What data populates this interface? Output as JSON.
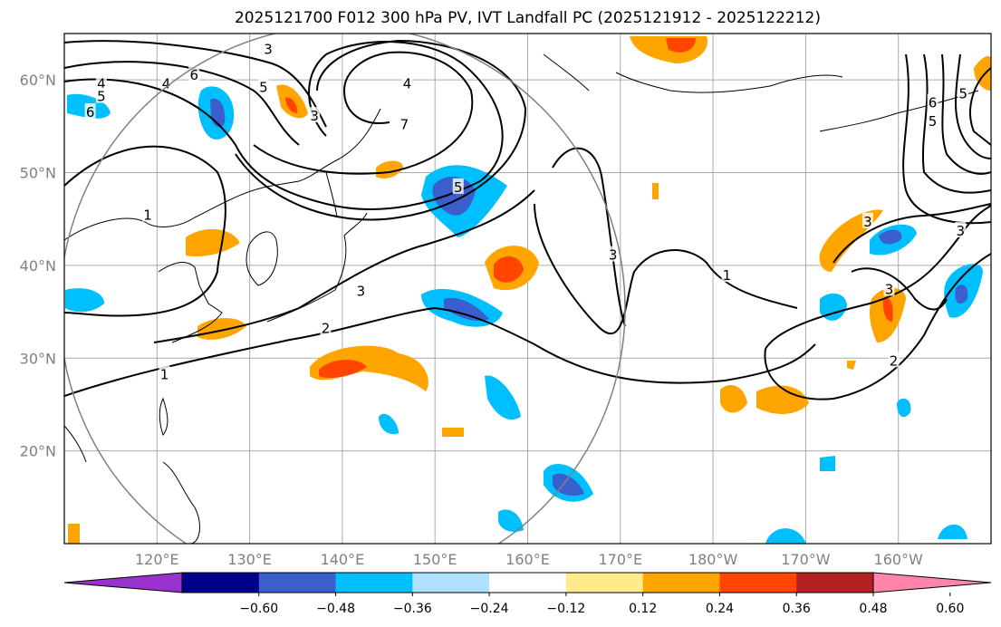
{
  "title": "2025121700 F012 300 hPa PV, IVT Landfall PC (2025121912 - 2025122212)",
  "map": {
    "lon_range": [
      110,
      210
    ],
    "lat_range": [
      10,
      65
    ],
    "lon_ticks": [
      {
        "lon": 120,
        "label": "120°E"
      },
      {
        "lon": 130,
        "label": "130°E"
      },
      {
        "lon": 140,
        "label": "140°E"
      },
      {
        "lon": 150,
        "label": "150°E"
      },
      {
        "lon": 160,
        "label": "160°E"
      },
      {
        "lon": 170,
        "label": "170°E"
      },
      {
        "lon": 180,
        "label": "180°W"
      },
      {
        "lon": 190,
        "label": "170°W"
      },
      {
        "lon": 200,
        "label": "160°W"
      }
    ],
    "lat_ticks": [
      {
        "lat": 60,
        "label": "60°N"
      },
      {
        "lat": 50,
        "label": "50°N"
      },
      {
        "lat": 40,
        "label": "40°N"
      },
      {
        "lat": 30,
        "label": "30°N"
      },
      {
        "lat": 20,
        "label": "20°N"
      }
    ],
    "contour_labels": [
      {
        "lon": 124.0,
        "lat": 60.6,
        "text": "6"
      },
      {
        "lon": 121.0,
        "lat": 59.7,
        "text": "4"
      },
      {
        "lon": 114.0,
        "lat": 59.7,
        "text": "4"
      },
      {
        "lon": 114.0,
        "lat": 58.3,
        "text": "5"
      },
      {
        "lon": 112.8,
        "lat": 56.6,
        "text": "6"
      },
      {
        "lon": 131.5,
        "lat": 59.3,
        "text": "5"
      },
      {
        "lon": 132.0,
        "lat": 63.4,
        "text": "3"
      },
      {
        "lon": 137.0,
        "lat": 56.2,
        "text": "3"
      },
      {
        "lon": 147.0,
        "lat": 59.7,
        "text": "4"
      },
      {
        "lon": 146.7,
        "lat": 55.3,
        "text": "7"
      },
      {
        "lon": 152.5,
        "lat": 48.5,
        "text": "5"
      },
      {
        "lon": 119.0,
        "lat": 45.5,
        "text": "1"
      },
      {
        "lon": 142.0,
        "lat": 37.3,
        "text": "3"
      },
      {
        "lon": 138.2,
        "lat": 33.3,
        "text": "2"
      },
      {
        "lon": 120.8,
        "lat": 28.3,
        "text": "1"
      },
      {
        "lon": 169.2,
        "lat": 41.2,
        "text": "3"
      },
      {
        "lon": 181.5,
        "lat": 39.0,
        "text": "1"
      },
      {
        "lon": 196.7,
        "lat": 44.8,
        "text": "3"
      },
      {
        "lon": 206.7,
        "lat": 43.8,
        "text": "3"
      },
      {
        "lon": 199.0,
        "lat": 37.5,
        "text": "3"
      },
      {
        "lon": 199.5,
        "lat": 29.8,
        "text": "2"
      },
      {
        "lon": 203.7,
        "lat": 55.6,
        "text": "5"
      },
      {
        "lon": 203.7,
        "lat": 57.6,
        "text": "6"
      },
      {
        "lon": 207.0,
        "lat": 58.6,
        "text": "5"
      }
    ]
  },
  "colorbar": {
    "colors": [
      "#9932cc",
      "#00008b",
      "#3a5fcd",
      "#00bfff",
      "#b0e0ff",
      "#ffffff",
      "#ffeb8c",
      "#ffa500",
      "#ff4500",
      "#b22222",
      "#ff85aa"
    ],
    "tick_labels": [
      "−0.60",
      "−0.48",
      "−0.36",
      "−0.24",
      "−0.12",
      "0.12",
      "0.24",
      "0.36",
      "0.48",
      "0.60"
    ]
  }
}
